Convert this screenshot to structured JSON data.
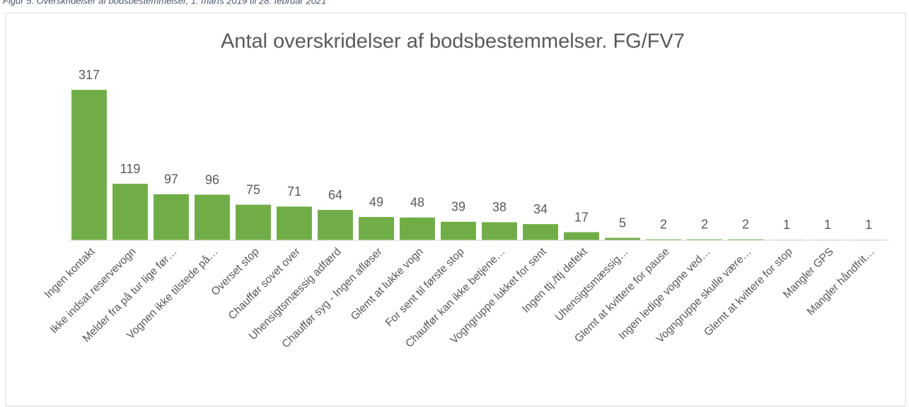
{
  "caption": "Figur 5: Overskridelser af bodsbestemmelser, 1. marts 2019 til 28. februar 2021",
  "chart_data": {
    "type": "bar",
    "title": "Antal overskridelser af bodsbestemmelser. FG/FV7",
    "categories": [
      "Ingen kontakt",
      "Ikke indsat reservevogn",
      "Melder fra på tur lige før…",
      "Vognen ikke tilstede på…",
      "Overset stop",
      "Chauffør sovet over",
      "Uhensigtsmæssig adfærd",
      "Chauffør syg - Ingen afløser",
      "Glemt at lukke vogn",
      "For sent til første stop",
      "Chauffør kan ikke betjene…",
      "Vogngruppe lukket for sent",
      "Ingen ttj./ttj defekt",
      "Uhensigtsmæssig…",
      "Glemt at kvittere for pause",
      "Ingen ledige vogne ved…",
      "Vogngruppe skulle være…",
      "Glemt at kvittere for stop",
      "Mangler GPS",
      "Mangler håndfrit…"
    ],
    "values": [
      317,
      119,
      97,
      96,
      75,
      71,
      64,
      49,
      48,
      39,
      38,
      34,
      17,
      5,
      2,
      2,
      2,
      1,
      1,
      1
    ],
    "color": "#70ad47",
    "ylim": [
      0,
      350
    ]
  }
}
